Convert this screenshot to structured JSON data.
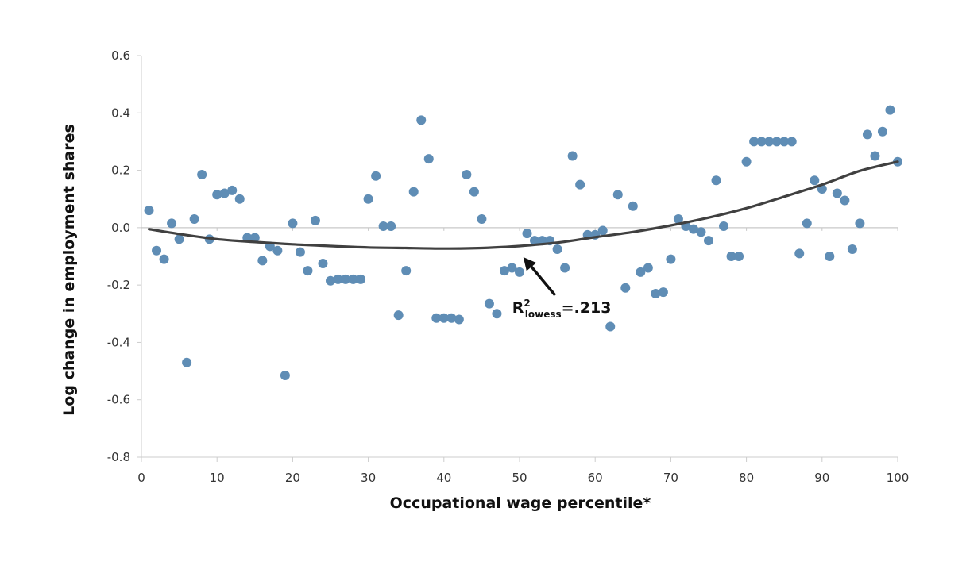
{
  "chart_data": {
    "type": "scatter",
    "xlabel": "Occupational wage percentile*",
    "ylabel": "Log change in employment shares",
    "xlim": [
      0,
      100
    ],
    "ylim": [
      -0.8,
      0.6
    ],
    "xticks": [
      "0",
      "10",
      "20",
      "30",
      "40",
      "50",
      "60",
      "70",
      "80",
      "90",
      "100"
    ],
    "yticks": [
      "0.6",
      "0.4",
      "0.2",
      "0.0",
      "-0.2",
      "-0.4",
      "-0.6",
      "-0.8"
    ],
    "grid": false,
    "colors": {
      "points": "#5f8db5",
      "line": "#404040",
      "axis": "#cccccc",
      "zero_line": "#c8c8c8",
      "arrow": "#111111"
    },
    "series": [
      {
        "type": "scatter",
        "x": [
          1,
          2,
          3,
          4,
          5,
          6,
          7,
          8,
          9,
          10,
          11,
          12,
          13,
          14,
          15,
          16,
          17,
          18,
          19,
          20,
          21,
          22,
          23,
          24,
          25,
          26,
          27,
          28,
          29,
          30,
          31,
          32,
          33,
          34,
          35,
          36,
          37,
          38,
          39,
          40,
          41,
          42,
          43,
          44,
          45,
          46,
          47,
          48,
          49,
          50,
          51,
          52,
          53,
          54,
          55,
          56,
          57,
          58,
          59,
          60,
          61,
          62,
          63,
          64,
          65,
          66,
          67,
          68,
          69,
          70,
          71,
          72,
          73,
          74,
          75,
          76,
          77,
          78,
          79,
          80,
          81,
          82,
          83,
          84,
          85,
          86,
          87,
          88,
          89,
          90,
          91,
          92,
          93,
          94,
          95,
          96,
          97,
          98,
          99,
          100
        ],
        "y": [
          0.06,
          -0.08,
          -0.11,
          0.015,
          -0.04,
          -0.47,
          0.03,
          0.185,
          -0.04,
          0.115,
          0.12,
          0.13,
          0.1,
          -0.035,
          -0.035,
          -0.115,
          -0.065,
          -0.08,
          -0.515,
          0.015,
          -0.085,
          -0.15,
          0.025,
          -0.125,
          -0.185,
          -0.18,
          -0.18,
          -0.18,
          -0.18,
          0.1,
          0.18,
          0.005,
          0.005,
          -0.305,
          -0.15,
          0.125,
          0.375,
          0.24,
          -0.315,
          -0.315,
          -0.315,
          -0.32,
          0.185,
          0.125,
          0.03,
          -0.265,
          -0.3,
          -0.15,
          -0.14,
          -0.155,
          -0.02,
          -0.045,
          -0.045,
          -0.045,
          -0.075,
          -0.14,
          0.25,
          0.15,
          -0.025,
          -0.025,
          -0.01,
          -0.345,
          0.115,
          -0.21,
          0.075,
          -0.155,
          -0.14,
          -0.23,
          -0.225,
          -0.11,
          0.03,
          0.005,
          -0.005,
          -0.015,
          -0.045,
          0.165,
          0.005,
          -0.1,
          -0.1,
          0.23,
          0.3,
          0.3,
          0.3,
          0.3,
          0.3,
          0.3,
          -0.09,
          0.015,
          0.165,
          0.135,
          -0.1,
          0.12,
          0.095,
          -0.075,
          0.015,
          0.325,
          0.25,
          0.335,
          0.41,
          0.23
        ]
      },
      {
        "type": "line",
        "x": [
          1,
          5,
          10,
          15,
          20,
          25,
          30,
          35,
          40,
          45,
          50,
          55,
          60,
          65,
          70,
          75,
          80,
          85,
          90,
          95,
          100
        ],
        "y": [
          -0.005,
          -0.022,
          -0.04,
          -0.05,
          -0.058,
          -0.064,
          -0.069,
          -0.071,
          -0.073,
          -0.071,
          -0.064,
          -0.052,
          -0.033,
          -0.015,
          0.008,
          0.035,
          0.068,
          0.108,
          0.15,
          0.198,
          0.23
        ]
      }
    ],
    "annotations": [
      {
        "text": "R",
        "superscript": "2",
        "subscript": "lowess",
        "value": "=.213",
        "points_to": {
          "x": 50.5,
          "y": -0.075
        }
      }
    ]
  }
}
